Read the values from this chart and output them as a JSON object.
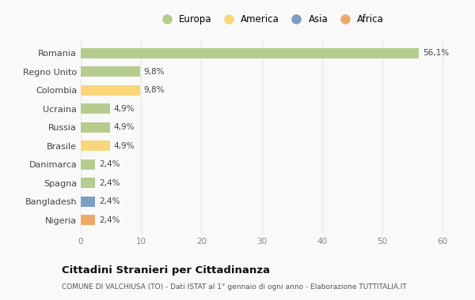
{
  "countries": [
    "Romania",
    "Regno Unito",
    "Colombia",
    "Ucraina",
    "Russia",
    "Brasile",
    "Danimarca",
    "Spagna",
    "Bangladesh",
    "Nigeria"
  ],
  "values": [
    56.1,
    9.8,
    9.8,
    4.9,
    4.9,
    4.9,
    2.4,
    2.4,
    2.4,
    2.4
  ],
  "labels": [
    "56,1%",
    "9,8%",
    "9,8%",
    "4,9%",
    "4,9%",
    "4,9%",
    "2,4%",
    "2,4%",
    "2,4%",
    "2,4%"
  ],
  "continents": [
    "Europa",
    "Europa",
    "America",
    "Europa",
    "Europa",
    "America",
    "Europa",
    "Europa",
    "Asia",
    "Africa"
  ],
  "colors": {
    "Europa": "#b5cc8e",
    "America": "#f9d67a",
    "Asia": "#7a9fc2",
    "Africa": "#f0a868"
  },
  "xlim": [
    0,
    63
  ],
  "xticks": [
    0,
    10,
    20,
    30,
    40,
    50,
    60
  ],
  "title": "Cittadini Stranieri per Cittadinanza",
  "subtitle": "COMUNE DI VALCHIUSA (TO) - Dati ISTAT al 1° gennaio di ogni anno - Elaborazione TUTTITALIA.IT",
  "bg_color": "#f9f9f9",
  "grid_color": "#e8e8e8",
  "bar_height": 0.55
}
